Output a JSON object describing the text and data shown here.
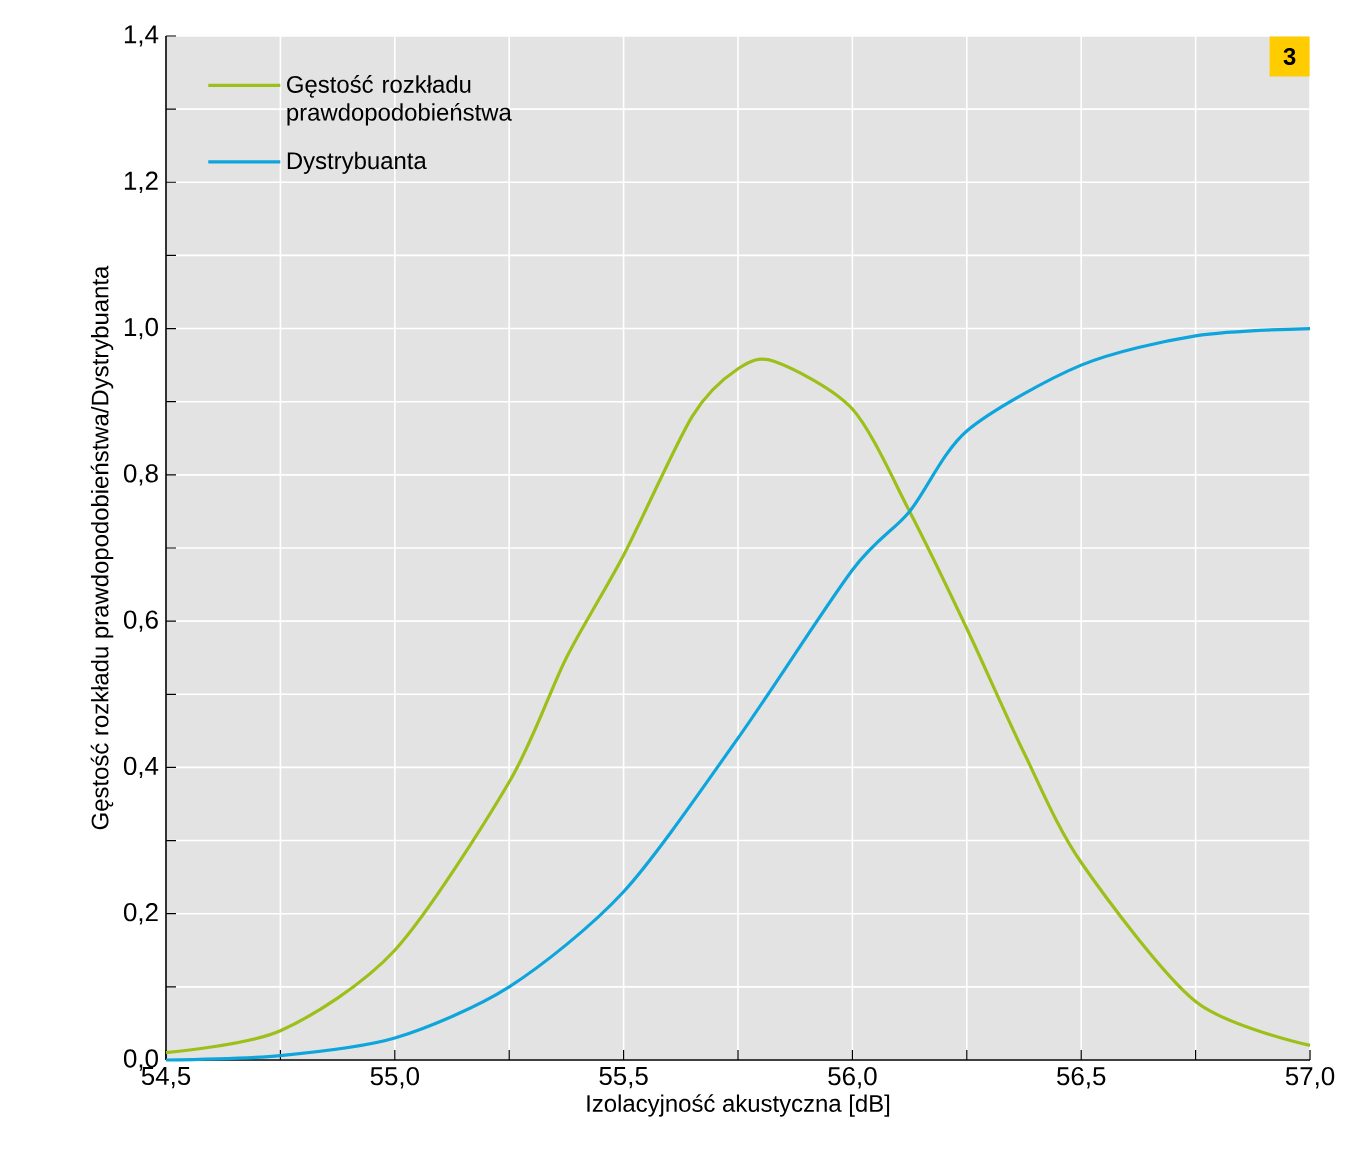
{
  "chart_data": {
    "type": "line",
    "xlabel": "Izolacyjność akustyczna [dB]",
    "ylabel": "Gęstość rozkładu prawdopodobieństwa/Dystrybuanta",
    "annotations": [
      "3"
    ],
    "series": [
      {
        "name": "Gęstość rozkładu prawdopodobieństwa",
        "color": "#9cbf1a",
        "x": [
          54.5,
          54.75,
          55.0,
          55.25,
          55.375,
          55.5,
          55.65,
          55.75,
          55.83,
          56.0,
          56.125,
          56.25,
          56.375,
          56.5,
          56.75,
          57.0
        ],
        "values": [
          0.01,
          0.04,
          0.15,
          0.38,
          0.55,
          0.69,
          0.88,
          0.945,
          0.955,
          0.89,
          0.75,
          0.59,
          0.42,
          0.27,
          0.08,
          0.02
        ]
      },
      {
        "name": "Dystrybuanta",
        "color": "#0ea5dc",
        "x": [
          54.5,
          54.75,
          55.0,
          55.25,
          55.5,
          55.75,
          56.0,
          56.125,
          56.25,
          56.5,
          56.75,
          57.0
        ],
        "values": [
          0.0,
          0.006,
          0.03,
          0.1,
          0.23,
          0.44,
          0.67,
          0.75,
          0.86,
          0.95,
          0.99,
          1.0
        ]
      }
    ],
    "xlim": [
      54.5,
      57.0
    ],
    "ylim": [
      0,
      1.4
    ],
    "xticks": [
      {
        "value": 54.5,
        "label": "54,5"
      },
      {
        "value": 54.75,
        "label": null
      },
      {
        "value": 55.0,
        "label": "55,0"
      },
      {
        "value": 55.25,
        "label": null
      },
      {
        "value": 55.5,
        "label": "55,5"
      },
      {
        "value": 55.75,
        "label": null
      },
      {
        "value": 56.0,
        "label": "56,0"
      },
      {
        "value": 56.25,
        "label": null
      },
      {
        "value": 56.5,
        "label": "56,5"
      },
      {
        "value": 56.75,
        "label": null
      },
      {
        "value": 57.0,
        "label": "57,0"
      }
    ],
    "yticks": [
      {
        "value": 0,
        "label": "0,0"
      },
      {
        "value": 0.1,
        "label": null
      },
      {
        "value": 0.2,
        "label": "0,2"
      },
      {
        "value": 0.3,
        "label": null
      },
      {
        "value": 0.4,
        "label": "0,4"
      },
      {
        "value": 0.5,
        "label": null
      },
      {
        "value": 0.6,
        "label": "0,6"
      },
      {
        "value": 0.7,
        "label": null
      },
      {
        "value": 0.8,
        "label": "0,8"
      },
      {
        "value": 0.9,
        "label": null
      },
      {
        "value": 1.0,
        "label": "1,0"
      },
      {
        "value": 1.1,
        "label": null
      },
      {
        "value": 1.2,
        "label": "1,2"
      },
      {
        "value": 1.3,
        "label": null
      },
      {
        "value": 1.4,
        "label": "1,4"
      }
    ],
    "grid": true,
    "legend": "top left",
    "marker": "none",
    "line_style": "solid"
  }
}
